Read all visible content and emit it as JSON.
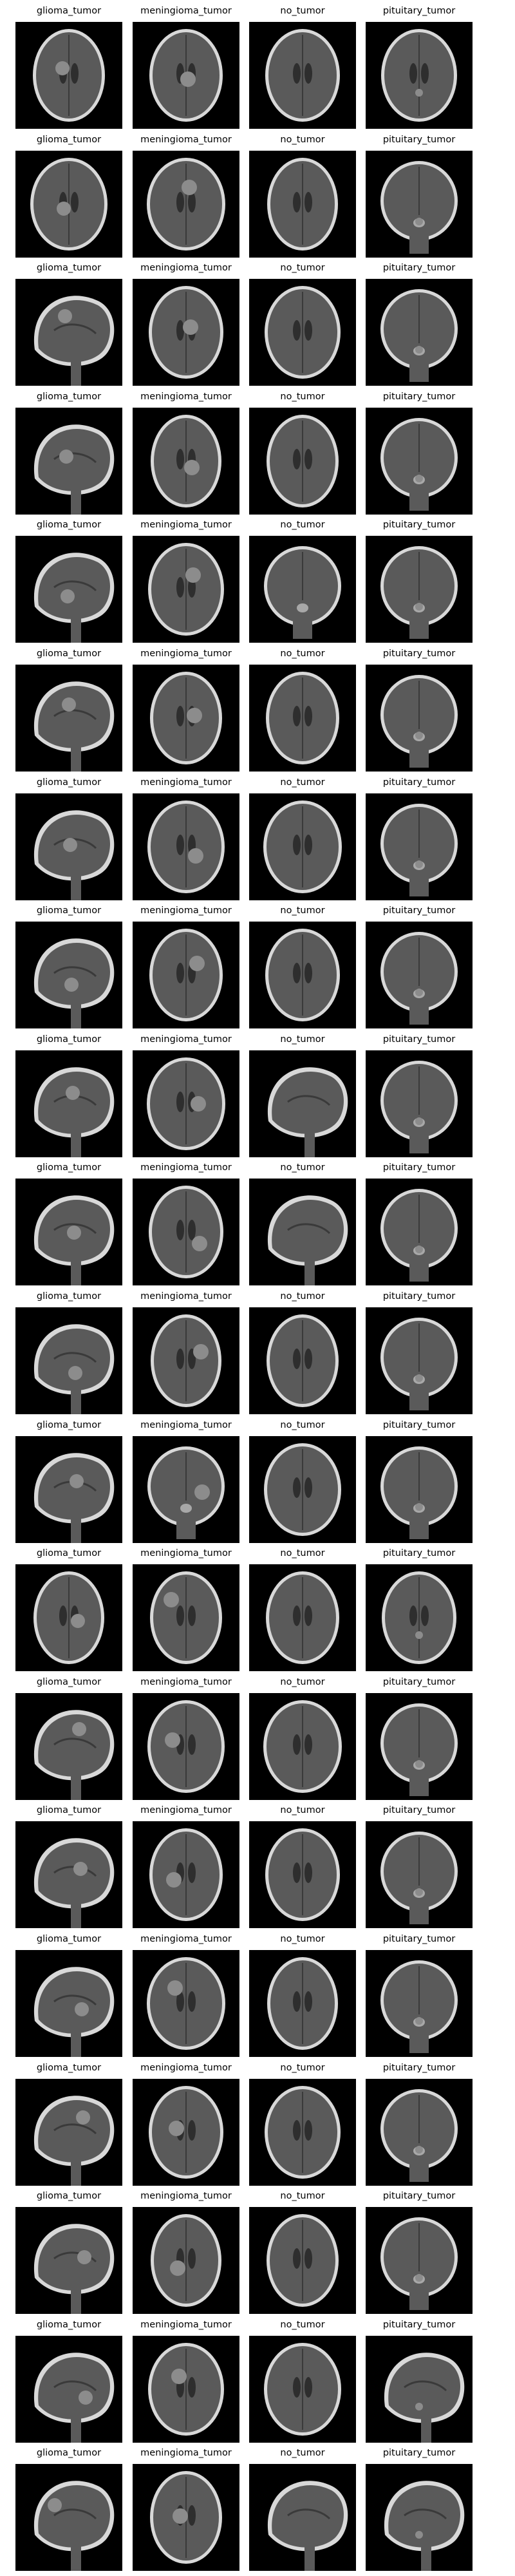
{
  "grid": {
    "columns": [
      "glioma_tumor",
      "meningioma_tumor",
      "no_tumor",
      "pituitary_tumor"
    ],
    "rows": [
      {
        "labels": [
          "glioma_tumor",
          "meningioma_tumor",
          "no_tumor",
          "pituitary_tumor"
        ],
        "views": [
          "axial",
          "axial",
          "axial",
          "axial"
        ]
      },
      {
        "labels": [
          "glioma_tumor",
          "meningioma_tumor",
          "no_tumor",
          "pituitary_tumor"
        ],
        "views": [
          "axial",
          "axial",
          "axial",
          "coronal"
        ]
      },
      {
        "labels": [
          "glioma_tumor",
          "meningioma_tumor",
          "no_tumor",
          "pituitary_tumor"
        ],
        "views": [
          "sagittal",
          "axial",
          "axial",
          "coronal"
        ]
      },
      {
        "labels": [
          "glioma_tumor",
          "meningioma_tumor",
          "no_tumor",
          "pituitary_tumor"
        ],
        "views": [
          "sagittal",
          "axial",
          "axial",
          "coronal"
        ]
      },
      {
        "labels": [
          "glioma_tumor",
          "meningioma_tumor",
          "no_tumor",
          "pituitary_tumor"
        ],
        "views": [
          "sagittal",
          "axial",
          "coronal",
          "coronal"
        ]
      },
      {
        "labels": [
          "glioma_tumor",
          "meningioma_tumor",
          "no_tumor",
          "pituitary_tumor"
        ],
        "views": [
          "sagittal",
          "axial",
          "axial",
          "coronal"
        ]
      },
      {
        "labels": [
          "glioma_tumor",
          "meningioma_tumor",
          "no_tumor",
          "pituitary_tumor"
        ],
        "views": [
          "sagittal",
          "axial",
          "axial",
          "coronal"
        ]
      },
      {
        "labels": [
          "glioma_tumor",
          "meningioma_tumor",
          "no_tumor",
          "pituitary_tumor"
        ],
        "views": [
          "sagittal",
          "axial",
          "axial",
          "coronal"
        ]
      },
      {
        "labels": [
          "glioma_tumor",
          "meningioma_tumor",
          "no_tumor",
          "pituitary_tumor"
        ],
        "views": [
          "sagittal",
          "axial",
          "sagittal",
          "coronal"
        ]
      },
      {
        "labels": [
          "glioma_tumor",
          "meningioma_tumor",
          "no_tumor",
          "pituitary_tumor"
        ],
        "views": [
          "sagittal",
          "axial",
          "sagittal",
          "coronal"
        ]
      },
      {
        "labels": [
          "glioma_tumor",
          "meningioma_tumor",
          "no_tumor",
          "pituitary_tumor"
        ],
        "views": [
          "sagittal",
          "axial",
          "axial",
          "coronal"
        ]
      },
      {
        "labels": [
          "glioma_tumor",
          "meningioma_tumor",
          "no_tumor",
          "pituitary_tumor"
        ],
        "views": [
          "sagittal",
          "coronal",
          "axial",
          "coronal"
        ]
      },
      {
        "labels": [
          "glioma_tumor",
          "meningioma_tumor",
          "no_tumor",
          "pituitary_tumor"
        ],
        "views": [
          "axial",
          "axial",
          "axial",
          "axial"
        ]
      },
      {
        "labels": [
          "glioma_tumor",
          "meningioma_tumor",
          "no_tumor",
          "pituitary_tumor"
        ],
        "views": [
          "sagittal",
          "axial",
          "axial",
          "coronal"
        ]
      },
      {
        "labels": [
          "glioma_tumor",
          "meningioma_tumor",
          "no_tumor",
          "pituitary_tumor"
        ],
        "views": [
          "sagittal",
          "axial",
          "axial",
          "coronal"
        ]
      },
      {
        "labels": [
          "glioma_tumor",
          "meningioma_tumor",
          "no_tumor",
          "pituitary_tumor"
        ],
        "views": [
          "sagittal",
          "axial",
          "axial",
          "coronal"
        ]
      },
      {
        "labels": [
          "glioma_tumor",
          "meningioma_tumor",
          "no_tumor",
          "pituitary_tumor"
        ],
        "views": [
          "sagittal",
          "axial",
          "axial",
          "coronal"
        ]
      },
      {
        "labels": [
          "glioma_tumor",
          "meningioma_tumor",
          "no_tumor",
          "pituitary_tumor"
        ],
        "views": [
          "sagittal",
          "axial",
          "axial",
          "coronal"
        ]
      },
      {
        "labels": [
          "glioma_tumor",
          "meningioma_tumor",
          "no_tumor",
          "pituitary_tumor"
        ],
        "views": [
          "sagittal",
          "axial",
          "axial",
          "sagittal"
        ]
      },
      {
        "labels": [
          "glioma_tumor",
          "meningioma_tumor",
          "no_tumor",
          "pituitary_tumor"
        ],
        "views": [
          "sagittal",
          "axial",
          "sagittal",
          "sagittal"
        ]
      }
    ]
  },
  "colors": {
    "background": "#ffffff",
    "caption_text": "#000000",
    "scan_background": "#000000",
    "tissue_mid": "#5a5a5a",
    "tissue_bright": "#d8d8d8",
    "lesion": "#8c8c8c"
  }
}
